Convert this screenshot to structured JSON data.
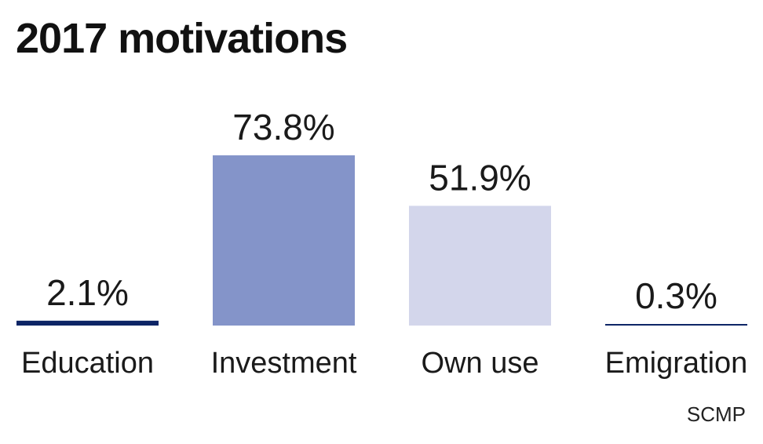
{
  "chart_data": {
    "type": "bar",
    "title": "2017 motivations",
    "categories": [
      "Education",
      "Investment",
      "Own use",
      "Emigration"
    ],
    "values": [
      2.1,
      73.8,
      51.9,
      0.3
    ],
    "value_labels": [
      "2.1%",
      "73.8%",
      "51.9%",
      "0.3%"
    ],
    "colors": [
      "#0d2566",
      "#8494c9",
      "#d3d6eb",
      "#0d2566"
    ],
    "ylim": [
      0,
      73.8
    ],
    "grid": false,
    "legend": "none"
  },
  "source": "SCMP"
}
